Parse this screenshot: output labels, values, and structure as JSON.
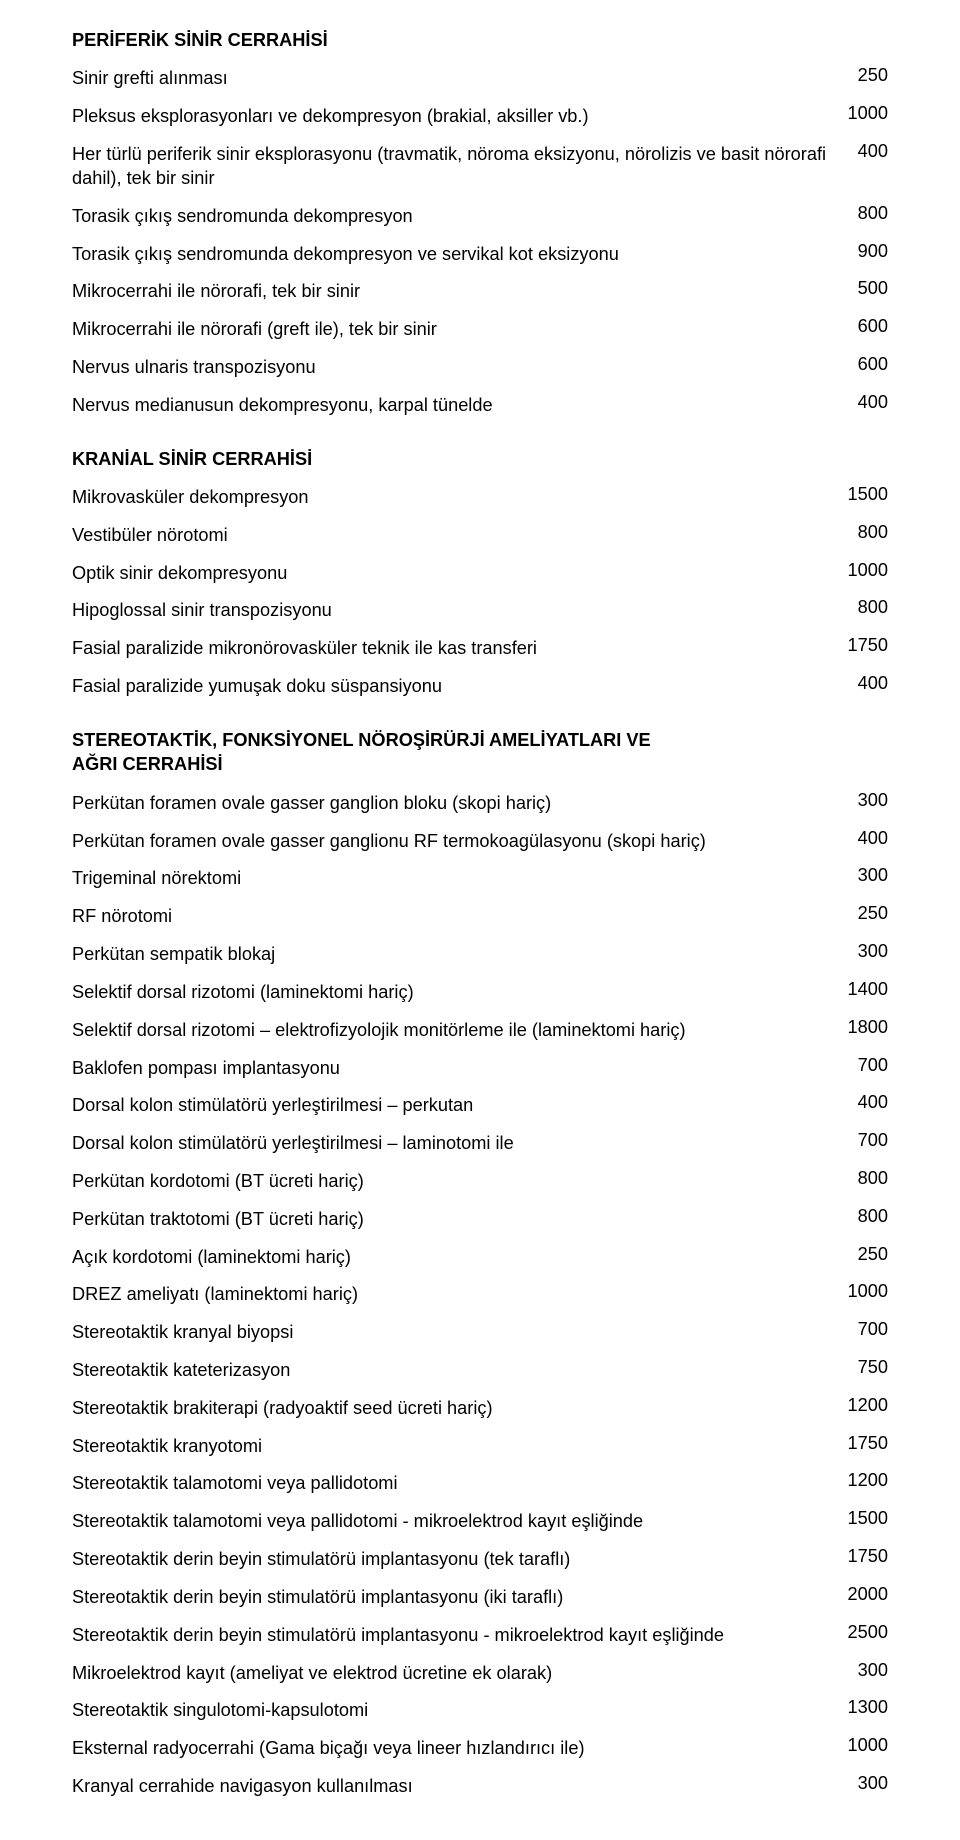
{
  "sections": [
    {
      "heading": "PERİFERİK SİNİR CERRAHİSİ",
      "rows": [
        {
          "label": "Sinir grefti alınması",
          "value": "250"
        },
        {
          "label": "Pleksus eksplorasyonları ve dekompresyon (brakial, aksiller vb.)",
          "value": "1000"
        },
        {
          "label": "Her türlü periferik sinir eksplorasyonu (travmatik, nöroma eksizyonu, nörolizis ve basit nörorafi dahil), tek bir sinir",
          "value": "400"
        },
        {
          "label": "Torasik çıkış sendromunda dekompresyon",
          "value": "800"
        },
        {
          "label": "Torasik çıkış sendromunda dekompresyon ve servikal kot eksizyonu",
          "value": "900"
        },
        {
          "label": "Mikrocerrahi ile nörorafi, tek bir sinir",
          "value": "500"
        },
        {
          "label": "Mikrocerrahi ile nörorafi (greft ile), tek bir sinir",
          "value": "600"
        },
        {
          "label": "Nervus ulnaris transpozisyonu",
          "value": "600"
        },
        {
          "label": "Nervus medianusun dekompresyonu, karpal tünelde",
          "value": "400"
        }
      ]
    },
    {
      "heading": "KRANİAL SİNİR CERRAHİSİ",
      "rows": [
        {
          "label": "Mikrovasküler dekompresyon",
          "value": "1500"
        },
        {
          "label": "Vestibüler nörotomi",
          "value": "800"
        },
        {
          "label": "Optik sinir dekompresyonu",
          "value": "1000"
        },
        {
          "label": "Hipoglossal sinir transpozisyonu",
          "value": "800"
        },
        {
          "label": "Fasial paralizide mikronörovasküler teknik ile kas transferi",
          "value": "1750"
        },
        {
          "label": "Fasial paralizide yumuşak doku süspansiyonu",
          "value": "400"
        }
      ]
    },
    {
      "heading": "STEREOTAKTİK, FONKSİYONEL NÖROŞİRÜRJİ AMELİYATLARI VE AĞRI CERRAHİSİ",
      "rows": [
        {
          "label": "Perkütan foramen ovale gasser ganglion bloku (skopi hariç)",
          "value": "300"
        },
        {
          "label": "Perkütan foramen ovale gasser ganglionu RF termokoagülasyonu (skopi hariç)",
          "value": "400"
        },
        {
          "label": "Trigeminal nörektomi",
          "value": "300"
        },
        {
          "label": "RF nörotomi",
          "value": "250"
        },
        {
          "label": "Perkütan sempatik blokaj",
          "value": "300"
        },
        {
          "label": "Selektif dorsal rizotomi (laminektomi hariç)",
          "value": "1400"
        },
        {
          "label": "Selektif dorsal rizotomi – elektrofizyolojik monitörleme ile (laminektomi hariç)",
          "value": "1800"
        },
        {
          "label": "Baklofen pompası implantasyonu",
          "value": "700"
        },
        {
          "label": "Dorsal kolon stimülatörü yerleştirilmesi – perkutan",
          "value": "400"
        },
        {
          "label": "Dorsal kolon stimülatörü yerleştirilmesi – laminotomi ile",
          "value": "700"
        },
        {
          "label": "Perkütan kordotomi (BT ücreti hariç)",
          "value": "800"
        },
        {
          "label": "Perkütan traktotomi (BT ücreti hariç)",
          "value": "800"
        },
        {
          "label": "Açık kordotomi (laminektomi hariç)",
          "value": "250"
        },
        {
          "label": "DREZ ameliyatı (laminektomi hariç)",
          "value": "1000"
        },
        {
          "label": "Stereotaktik kranyal biyopsi",
          "value": "700"
        },
        {
          "label": "Stereotaktik kateterizasyon",
          "value": "750"
        },
        {
          "label": "Stereotaktik brakiterapi (radyoaktif seed ücreti hariç)",
          "value": "1200"
        },
        {
          "label": "Stereotaktik kranyotomi",
          "value": "1750"
        },
        {
          "label": "Stereotaktik talamotomi veya pallidotomi",
          "value": "1200"
        },
        {
          "label": "Stereotaktik talamotomi veya pallidotomi - mikroelektrod kayıt eşliğinde",
          "value": "1500"
        },
        {
          "label": "Stereotaktik derin beyin stimulatörü implantasyonu (tek taraflı)",
          "value": "1750"
        },
        {
          "label": "Stereotaktik derin beyin stimulatörü implantasyonu (iki taraflı)",
          "value": "2000"
        },
        {
          "label": "Stereotaktik derin beyin stimulatörü implantasyonu - mikroelektrod kayıt eşliğinde",
          "value": "2500"
        },
        {
          "label": "Mikroelektrod kayıt (ameliyat ve elektrod ücretine ek olarak)",
          "value": "300"
        },
        {
          "label": "Stereotaktik singulotomi-kapsulotomi",
          "value": "1300"
        },
        {
          "label": "Eksternal radyocerrahi (Gama biçağı veya lineer hızlandırıcı ile)",
          "value": "1000"
        },
        {
          "label": "Kranyal cerrahide navigasyon kullanılması",
          "value": "300"
        }
      ]
    }
  ]
}
